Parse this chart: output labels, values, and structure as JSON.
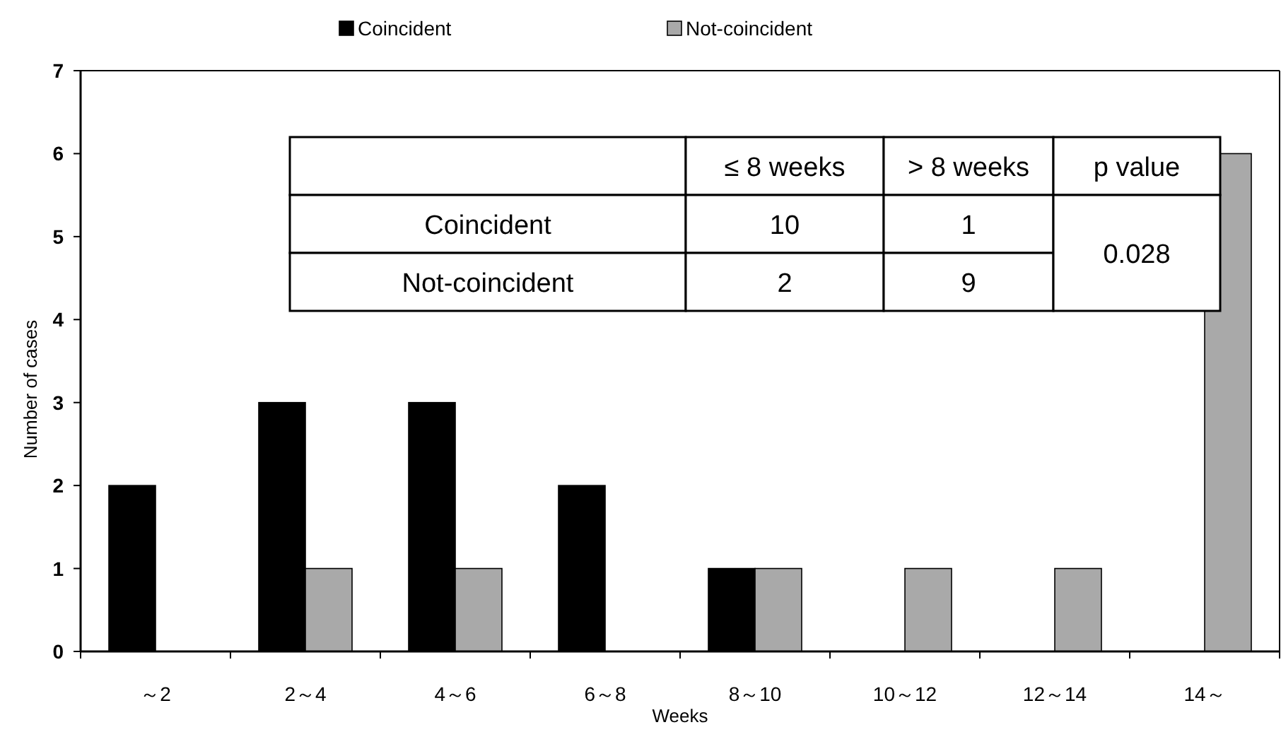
{
  "chart_data": {
    "type": "bar",
    "categories": [
      "～2",
      "2～4",
      "4～6",
      "6～8",
      "8～10",
      "10～12",
      "12～14",
      "14～"
    ],
    "series": [
      {
        "name": "Coincident",
        "color": "#000000",
        "values": [
          2,
          3,
          3,
          2,
          1,
          0,
          0,
          0
        ]
      },
      {
        "name": "Not-coincident",
        "color": "#a9a9a9",
        "values": [
          0,
          1,
          1,
          0,
          1,
          1,
          1,
          6
        ]
      }
    ],
    "xlabel": "Weeks",
    "ylabel": "Number of cases",
    "ylim": [
      0,
      7
    ],
    "yticks": [
      0,
      1,
      2,
      3,
      4,
      5,
      6,
      7
    ],
    "legend": "top",
    "grid": false,
    "annotations": [
      "≤ 8 weeks",
      "> 8 weeks",
      "p value",
      "Coincident",
      "10",
      "1",
      "Not-coincident",
      "2",
      "9",
      "0.028"
    ]
  }
}
